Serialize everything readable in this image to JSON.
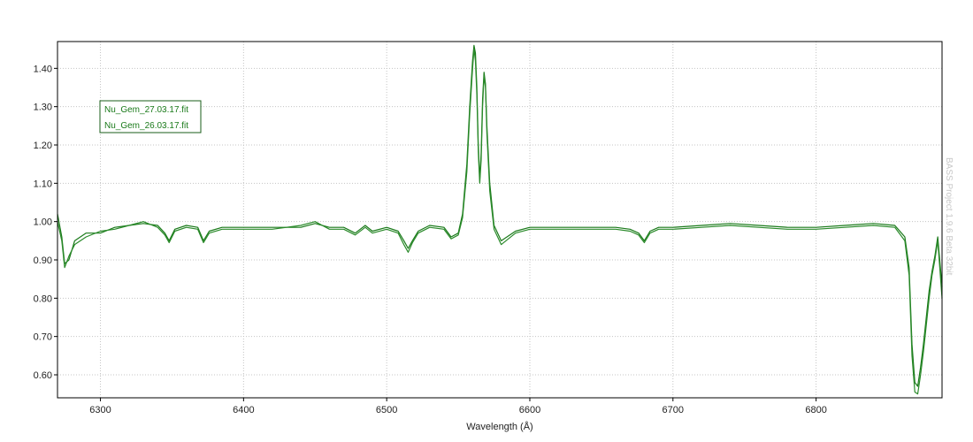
{
  "chart_data": {
    "type": "line",
    "title": "",
    "xlabel": "Wavelength (Å)",
    "ylabel": "",
    "xlim": [
      6270,
      6888
    ],
    "ylim": [
      0.54,
      1.47
    ],
    "x_ticks": [
      6300,
      6400,
      6500,
      6600,
      6700,
      6800
    ],
    "x_tick_labels": [
      "6300",
      "6400",
      "6500",
      "6600",
      "6700",
      "6800"
    ],
    "y_ticks": [
      0.6,
      0.7,
      0.8,
      0.9,
      1.0,
      1.1,
      1.2,
      1.3,
      1.4
    ],
    "y_tick_labels": [
      "0.60",
      "0.70",
      "0.80",
      "0.90",
      "1.00",
      "1.10",
      "1.20",
      "1.30",
      "1.40"
    ],
    "grid": true,
    "legend_position": "top-left",
    "watermark": "BASS Project 1.9.6 Beta 32bit",
    "series": [
      {
        "name": "Nu_Gem_27.03.17.fit",
        "color": "#1a7a1a",
        "x": [
          6270,
          6273,
          6275,
          6278,
          6282,
          6290,
          6300,
          6310,
          6320,
          6330,
          6340,
          6345,
          6348,
          6352,
          6360,
          6368,
          6372,
          6376,
          6385,
          6400,
          6420,
          6440,
          6450,
          6460,
          6470,
          6478,
          6485,
          6490,
          6500,
          6508,
          6512,
          6515,
          6518,
          6522,
          6530,
          6540,
          6545,
          6550,
          6553,
          6556,
          6558,
          6560,
          6561,
          6562,
          6563,
          6564,
          6565,
          6566,
          6567,
          6568,
          6569,
          6570,
          6572,
          6575,
          6580,
          6590,
          6600,
          6620,
          6640,
          6660,
          6670,
          6676,
          6680,
          6684,
          6690,
          6700,
          6720,
          6740,
          6760,
          6780,
          6800,
          6820,
          6840,
          6855,
          6862,
          6865,
          6867,
          6869,
          6871,
          6873,
          6875,
          6877,
          6879,
          6881,
          6883,
          6885,
          6888
        ],
        "y": [
          1.02,
          0.96,
          0.89,
          0.9,
          0.95,
          0.97,
          0.97,
          0.985,
          0.99,
          0.995,
          0.99,
          0.97,
          0.95,
          0.98,
          0.99,
          0.985,
          0.95,
          0.975,
          0.985,
          0.985,
          0.985,
          0.985,
          0.995,
          0.985,
          0.985,
          0.97,
          0.99,
          0.975,
          0.985,
          0.975,
          0.95,
          0.93,
          0.95,
          0.975,
          0.99,
          0.985,
          0.96,
          0.97,
          1.02,
          1.15,
          1.3,
          1.42,
          1.46,
          1.44,
          1.35,
          1.2,
          1.11,
          1.18,
          1.32,
          1.39,
          1.36,
          1.25,
          1.1,
          0.99,
          0.95,
          0.975,
          0.985,
          0.985,
          0.985,
          0.985,
          0.98,
          0.97,
          0.95,
          0.975,
          0.985,
          0.985,
          0.99,
          0.995,
          0.99,
          0.985,
          0.985,
          0.99,
          0.995,
          0.99,
          0.96,
          0.88,
          0.68,
          0.58,
          0.57,
          0.62,
          0.68,
          0.75,
          0.82,
          0.87,
          0.91,
          0.96,
          0.83
        ]
      },
      {
        "name": "Nu_Gem_26.03.17.fit",
        "color": "#2a8a2a",
        "x": [
          6270,
          6273,
          6275,
          6278,
          6282,
          6290,
          6300,
          6310,
          6320,
          6330,
          6340,
          6345,
          6348,
          6352,
          6360,
          6368,
          6372,
          6376,
          6385,
          6400,
          6420,
          6440,
          6450,
          6460,
          6470,
          6478,
          6485,
          6490,
          6500,
          6508,
          6512,
          6515,
          6518,
          6522,
          6530,
          6540,
          6545,
          6550,
          6553,
          6556,
          6558,
          6560,
          6561,
          6562,
          6563,
          6564,
          6565,
          6566,
          6567,
          6568,
          6569,
          6570,
          6572,
          6575,
          6580,
          6590,
          6600,
          6620,
          6640,
          6660,
          6670,
          6676,
          6680,
          6684,
          6690,
          6700,
          6720,
          6740,
          6760,
          6780,
          6800,
          6820,
          6840,
          6855,
          6862,
          6865,
          6867,
          6869,
          6871,
          6873,
          6875,
          6877,
          6879,
          6881,
          6883,
          6885,
          6888
        ],
        "y": [
          1.0,
          0.95,
          0.88,
          0.91,
          0.94,
          0.96,
          0.975,
          0.98,
          0.99,
          1.0,
          0.985,
          0.965,
          0.945,
          0.975,
          0.985,
          0.98,
          0.945,
          0.97,
          0.98,
          0.98,
          0.98,
          0.99,
          1.0,
          0.98,
          0.98,
          0.965,
          0.985,
          0.97,
          0.98,
          0.97,
          0.94,
          0.92,
          0.945,
          0.97,
          0.985,
          0.98,
          0.955,
          0.965,
          1.01,
          1.13,
          1.28,
          1.4,
          1.45,
          1.42,
          1.33,
          1.18,
          1.1,
          1.16,
          1.3,
          1.38,
          1.35,
          1.23,
          1.08,
          0.98,
          0.94,
          0.97,
          0.98,
          0.98,
          0.98,
          0.98,
          0.975,
          0.965,
          0.945,
          0.97,
          0.98,
          0.98,
          0.985,
          0.99,
          0.985,
          0.98,
          0.98,
          0.985,
          0.99,
          0.985,
          0.95,
          0.86,
          0.65,
          0.555,
          0.55,
          0.6,
          0.66,
          0.73,
          0.8,
          0.86,
          0.9,
          0.95,
          0.8
        ]
      }
    ]
  }
}
